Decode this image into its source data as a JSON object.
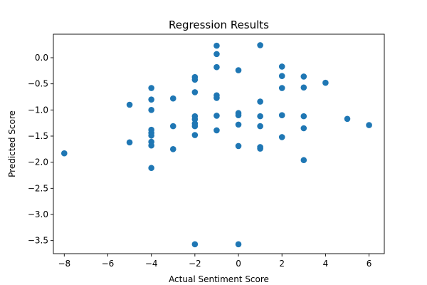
{
  "chart_data": {
    "type": "scatter",
    "title": "Regression Results",
    "xlabel": "Actual Sentiment Score",
    "ylabel": "Predicted Score",
    "xlim": [
      -8.5,
      6.7
    ],
    "ylim": [
      -3.75,
      0.45
    ],
    "xticks": [
      -8,
      -6,
      -4,
      -2,
      0,
      2,
      4,
      6
    ],
    "xtick_labels": [
      "−8",
      "−6",
      "−4",
      "−2",
      "0",
      "2",
      "4",
      "6"
    ],
    "yticks": [
      0.0,
      -0.5,
      -1.0,
      -1.5,
      -2.0,
      -2.5,
      -3.0,
      -3.5
    ],
    "ytick_labels": [
      "0.0",
      "−0.5",
      "−1.0",
      "−1.5",
      "−2.0",
      "−2.5",
      "−3.0",
      "−3.5"
    ],
    "grid": false,
    "marker_color": "#1f77b4",
    "series": [
      {
        "points": [
          {
            "x": -8,
            "y": -1.83
          },
          {
            "x": -5,
            "y": -0.9
          },
          {
            "x": -5,
            "y": -1.62
          },
          {
            "x": -4,
            "y": -0.58
          },
          {
            "x": -4,
            "y": -0.8
          },
          {
            "x": -4,
            "y": -1.0
          },
          {
            "x": -4,
            "y": -1.38
          },
          {
            "x": -4,
            "y": -1.44
          },
          {
            "x": -4,
            "y": -1.49
          },
          {
            "x": -4,
            "y": -1.61
          },
          {
            "x": -4,
            "y": -1.68
          },
          {
            "x": -4,
            "y": -2.11
          },
          {
            "x": -3,
            "y": -0.78
          },
          {
            "x": -3,
            "y": -1.31
          },
          {
            "x": -3,
            "y": -1.75
          },
          {
            "x": -2,
            "y": -0.37
          },
          {
            "x": -2,
            "y": -0.42
          },
          {
            "x": -2,
            "y": -0.66
          },
          {
            "x": -2,
            "y": -1.12
          },
          {
            "x": -2,
            "y": -1.18
          },
          {
            "x": -2,
            "y": -1.26
          },
          {
            "x": -2,
            "y": -1.31
          },
          {
            "x": -2,
            "y": -1.48
          },
          {
            "x": -2,
            "y": -3.57
          },
          {
            "x": -1,
            "y": 0.23
          },
          {
            "x": -1,
            "y": 0.07
          },
          {
            "x": -1,
            "y": -0.18
          },
          {
            "x": -1,
            "y": -0.72
          },
          {
            "x": -1,
            "y": -0.77
          },
          {
            "x": -1,
            "y": -1.11
          },
          {
            "x": -1,
            "y": -1.39
          },
          {
            "x": 0,
            "y": -0.24
          },
          {
            "x": 0,
            "y": -1.06
          },
          {
            "x": 0,
            "y": -1.1
          },
          {
            "x": 0,
            "y": -1.28
          },
          {
            "x": 0,
            "y": -1.69
          },
          {
            "x": 0,
            "y": -3.57
          },
          {
            "x": 1,
            "y": 0.24
          },
          {
            "x": 1,
            "y": -0.84
          },
          {
            "x": 1,
            "y": -1.12
          },
          {
            "x": 1,
            "y": -1.31
          },
          {
            "x": 1,
            "y": -1.71
          },
          {
            "x": 1,
            "y": -1.74
          },
          {
            "x": 2,
            "y": -0.17
          },
          {
            "x": 2,
            "y": -0.35
          },
          {
            "x": 2,
            "y": -0.58
          },
          {
            "x": 2,
            "y": -1.1
          },
          {
            "x": 2,
            "y": -1.52
          },
          {
            "x": 3,
            "y": -0.36
          },
          {
            "x": 3,
            "y": -0.57
          },
          {
            "x": 3,
            "y": -1.12
          },
          {
            "x": 3,
            "y": -1.35
          },
          {
            "x": 3,
            "y": -1.96
          },
          {
            "x": 4,
            "y": -0.48
          },
          {
            "x": 5,
            "y": -1.17
          },
          {
            "x": 6,
            "y": -1.29
          }
        ]
      }
    ]
  }
}
